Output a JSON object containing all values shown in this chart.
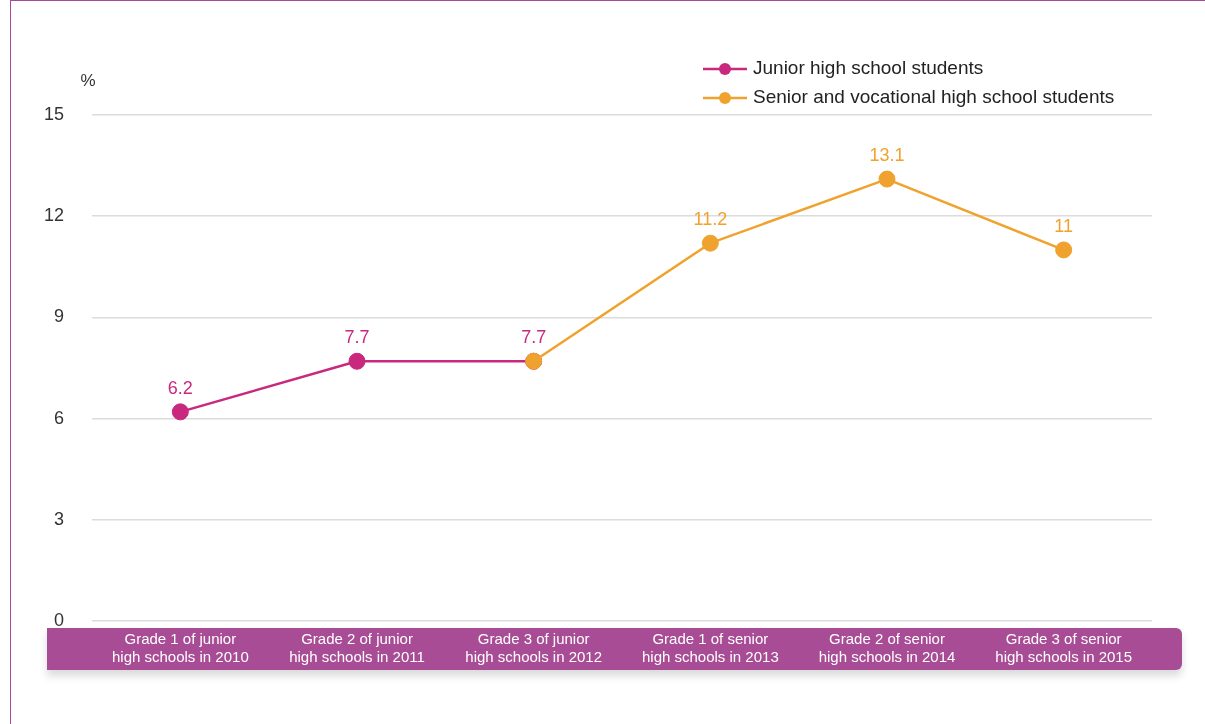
{
  "chart_data": {
    "type": "line",
    "ylabel": "%",
    "categories": [
      "Grade 1 of junior high schools in 2010",
      "Grade 2 of junior high schools in 2011",
      "Grade 3 of junior high schools in 2012",
      "Grade 1 of senior high schools in 2013",
      "Grade 2 of senior high schools in 2014",
      "Grade 3 of senior high schools in 2015"
    ],
    "series": [
      {
        "name": "Senior and vocational high school students",
        "color": "#f0a22e",
        "values": [
          null,
          null,
          7.7,
          11.2,
          13.1,
          11
        ],
        "value_labels": [
          null,
          null,
          null,
          "11.2",
          "13.1",
          "11"
        ]
      },
      {
        "name": "Junior high school students",
        "color": "#c8287e",
        "values": [
          6.2,
          7.7,
          7.7,
          null,
          null,
          null
        ],
        "value_labels": [
          "6.2",
          "7.7",
          "7.7",
          null,
          null,
          null
        ]
      }
    ],
    "ylim": [
      0,
      15
    ],
    "yticks": [
      0,
      3,
      6,
      9,
      12,
      15
    ],
    "grid": "y",
    "legend": "top right",
    "marker": "circle",
    "line_style": "solid"
  }
}
